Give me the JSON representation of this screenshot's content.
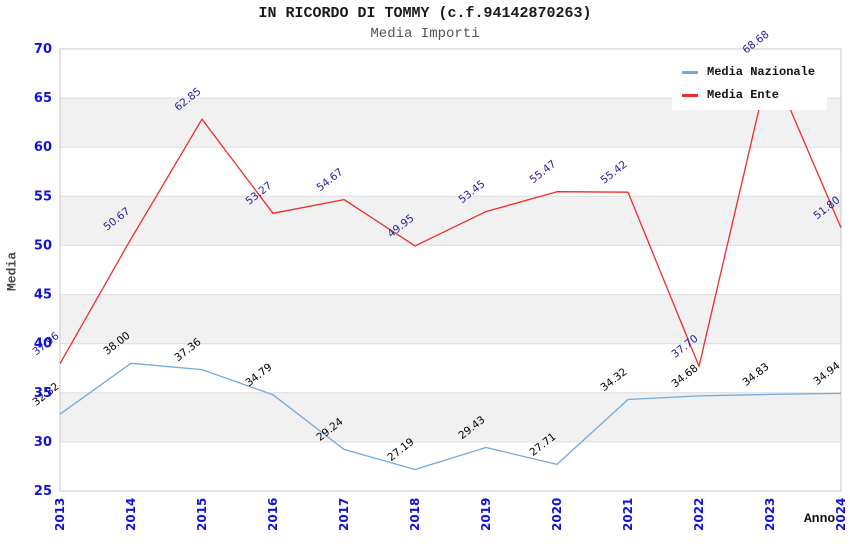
{
  "chart_data": {
    "type": "line",
    "title": "IN RICORDO DI TOMMY (c.f.94142870263)",
    "subtitle": "Media Importi",
    "xlabel": "Anno",
    "ylabel": "Media",
    "categories": [
      "2013",
      "2014",
      "2015",
      "2016",
      "2017",
      "2018",
      "2019",
      "2020",
      "2021",
      "2022",
      "2023",
      "2024"
    ],
    "series": [
      {
        "name": "Media Nazionale",
        "color": "#72abdd",
        "label_color": "#000000",
        "values": [
          32.82,
          38.0,
          37.36,
          34.79,
          29.24,
          27.19,
          29.43,
          27.71,
          34.32,
          34.68,
          34.83,
          34.94
        ]
      },
      {
        "name": "Media Ente",
        "color": "#ee2c2c",
        "label_color": "#22229e",
        "values": [
          37.96,
          50.67,
          62.85,
          53.27,
          54.67,
          49.95,
          53.45,
          55.47,
          55.42,
          37.7,
          68.68,
          51.8
        ]
      }
    ],
    "ylim": [
      25,
      70
    ],
    "ytick_step": 5,
    "grid": true,
    "legend_position": "top-right",
    "band_color": "#f1f1f1",
    "gridline_color": "#dedede",
    "border_color": "#c9c9c9",
    "tick_color": "#1313d6"
  }
}
